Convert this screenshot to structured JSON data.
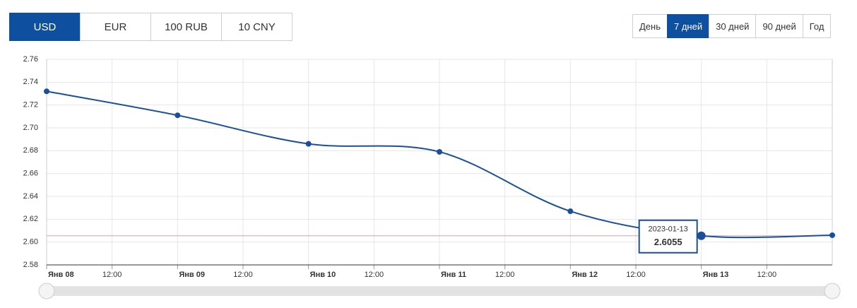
{
  "controls": {
    "currencies": [
      "USD",
      "EUR",
      "100 RUB",
      "10 CNY"
    ],
    "active_currency": "USD",
    "periods": [
      "День",
      "7 дней",
      "30 дней",
      "90 дней",
      "Год"
    ],
    "active_period": "7 дней"
  },
  "chart_data": {
    "type": "line",
    "x": [
      "2023-01-08",
      "2023-01-09",
      "2023-01-10",
      "2023-01-11",
      "2023-01-12",
      "2023-01-13",
      "2023-01-14"
    ],
    "series": [
      {
        "color": "#1a4f9a",
        "values": [
          2.732,
          2.711,
          2.686,
          2.679,
          2.627,
          2.6055,
          2.606
        ]
      }
    ],
    "xlim": [
      "2023-01-08T00:00",
      "2023-01-14T00:00"
    ],
    "xticks": [
      {
        "value": "2023-01-08T00:00",
        "label": "Янв 08"
      },
      {
        "value": "2023-01-08T12:00",
        "label": "12:00"
      },
      {
        "value": "2023-01-09T00:00",
        "label": "Янв 09"
      },
      {
        "value": "2023-01-09T12:00",
        "label": "12:00"
      },
      {
        "value": "2023-01-10T00:00",
        "label": "Янв 10"
      },
      {
        "value": "2023-01-10T12:00",
        "label": "12:00"
      },
      {
        "value": "2023-01-11T00:00",
        "label": "Янв 11"
      },
      {
        "value": "2023-01-11T12:00",
        "label": "12:00"
      },
      {
        "value": "2023-01-12T00:00",
        "label": "Янв 12"
      },
      {
        "value": "2023-01-12T12:00",
        "label": "12:00"
      },
      {
        "value": "2023-01-13T00:00",
        "label": "Янв 13"
      },
      {
        "value": "2023-01-13T12:00",
        "label": "12:00"
      }
    ],
    "ylim": [
      2.58,
      2.76
    ],
    "yticks": [
      2.58,
      {
        "value": 2.6,
        "label": "2.60"
      },
      2.62,
      2.64,
      2.66,
      2.68,
      {
        "value": 2.7,
        "label": "2.70"
      },
      2.72,
      2.74,
      2.76
    ],
    "grid": true,
    "highlight_index": 5,
    "reference_color": "#d9a0a8"
  }
}
